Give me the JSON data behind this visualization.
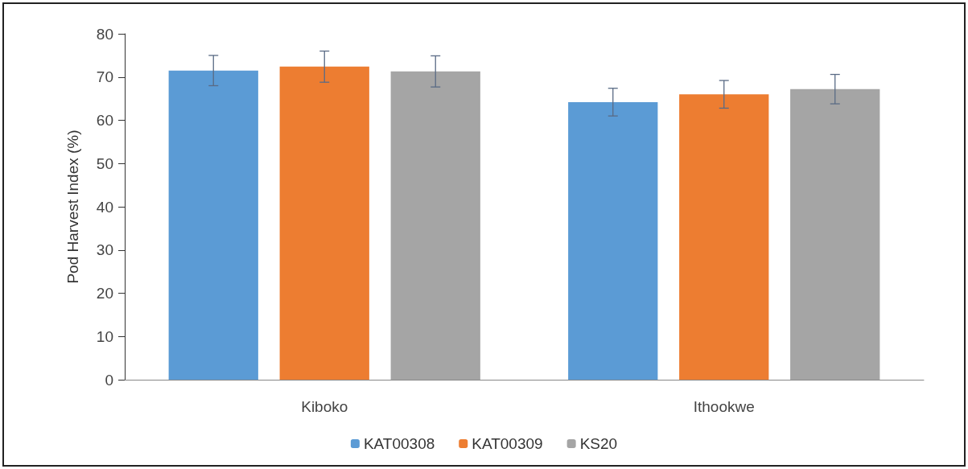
{
  "chart_data": {
    "type": "bar",
    "ylabel": "Pod Harvest Index (%)",
    "categories": [
      "Kiboko",
      "Ithookwe"
    ],
    "series": [
      {
        "name": "KAT00308",
        "color": "#5b9bd5",
        "values": [
          71.5,
          64.2
        ],
        "errors": [
          3.5,
          3.2
        ]
      },
      {
        "name": "KAT00309",
        "color": "#ed7d31",
        "values": [
          72.4,
          66.0
        ],
        "errors": [
          3.6,
          3.2
        ]
      },
      {
        "name": "KS20",
        "color": "#a5a5a5",
        "values": [
          71.3,
          67.2
        ],
        "errors": [
          3.6,
          3.4
        ]
      }
    ],
    "ylim": [
      0,
      80
    ],
    "yticks": [
      0,
      10,
      20,
      30,
      40,
      50,
      60,
      70,
      80
    ],
    "grid": false,
    "legend": "bottom"
  }
}
